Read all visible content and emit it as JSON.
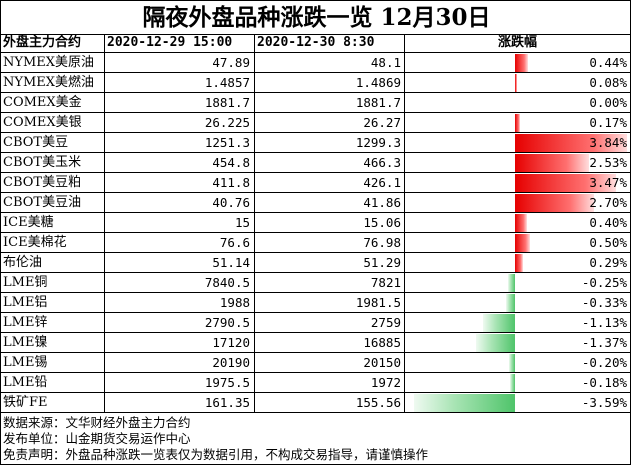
{
  "title": "隔夜外盘品种涨跌一览 12月30日",
  "headers": {
    "name": "外盘主力合约",
    "price1": "2020-12-29 15:00",
    "price2": "2020-12-30 8:30",
    "change": "涨跌幅"
  },
  "colors": {
    "up": "#e60000",
    "down": "#4fc46a"
  },
  "chart_data": {
    "type": "table",
    "columns": [
      "外盘主力合约",
      "2020-12-29 15:00",
      "2020-12-30 8:30",
      "涨跌幅"
    ],
    "rows": [
      {
        "name": "NYMEX美原油",
        "p1": "47.89",
        "p2": "48.1",
        "pct_label": "0.44%",
        "pct": 0.44
      },
      {
        "name": "NYMEX美燃油",
        "p1": "1.4857",
        "p2": "1.4869",
        "pct_label": "0.08%",
        "pct": 0.08
      },
      {
        "name": "COMEX美金",
        "p1": "1881.7",
        "p2": "1881.7",
        "pct_label": "0.00%",
        "pct": 0.0
      },
      {
        "name": "COMEX美银",
        "p1": "26.225",
        "p2": "26.27",
        "pct_label": "0.17%",
        "pct": 0.17
      },
      {
        "name": "CBOT美豆",
        "p1": "1251.3",
        "p2": "1299.3",
        "pct_label": "3.84%",
        "pct": 3.84
      },
      {
        "name": "CBOT美玉米",
        "p1": "454.8",
        "p2": "466.3",
        "pct_label": "2.53%",
        "pct": 2.53
      },
      {
        "name": "CBOT美豆粕",
        "p1": "411.8",
        "p2": "426.1",
        "pct_label": "3.47%",
        "pct": 3.47
      },
      {
        "name": "CBOT美豆油",
        "p1": "40.76",
        "p2": "41.86",
        "pct_label": "2.70%",
        "pct": 2.7
      },
      {
        "name": "ICE美糖",
        "p1": "15",
        "p2": "15.06",
        "pct_label": "0.40%",
        "pct": 0.4
      },
      {
        "name": "ICE美棉花",
        "p1": "76.6",
        "p2": "76.98",
        "pct_label": "0.50%",
        "pct": 0.5
      },
      {
        "name": "布伦油",
        "p1": "51.14",
        "p2": "51.29",
        "pct_label": "0.29%",
        "pct": 0.29
      },
      {
        "name": "LME铜",
        "p1": "7840.5",
        "p2": "7821",
        "pct_label": "-0.25%",
        "pct": -0.25
      },
      {
        "name": "LME铝",
        "p1": "1988",
        "p2": "1981.5",
        "pct_label": "-0.33%",
        "pct": -0.33
      },
      {
        "name": "LME锌",
        "p1": "2790.5",
        "p2": "2759",
        "pct_label": "-1.13%",
        "pct": -1.13
      },
      {
        "name": "LME镍",
        "p1": "17120",
        "p2": "16885",
        "pct_label": "-1.37%",
        "pct": -1.37
      },
      {
        "name": "LME锡",
        "p1": "20190",
        "p2": "20150",
        "pct_label": "-0.20%",
        "pct": -0.2
      },
      {
        "name": "LME铅",
        "p1": "1975.5",
        "p2": "1972",
        "pct_label": "-0.18%",
        "pct": -0.18
      },
      {
        "name": "铁矿FE",
        "p1": "161.35",
        "p2": "155.56",
        "pct_label": "-3.59%",
        "pct": -3.59
      }
    ]
  },
  "footer": {
    "source": "数据来源：文华财经外盘主力合约",
    "publisher": "发布单位：山金期货交易运作中心",
    "disclaimer": "免责声明：外盘品种涨跌一览表仅为数据引用，不构成交易指导，请谨慎操作"
  }
}
